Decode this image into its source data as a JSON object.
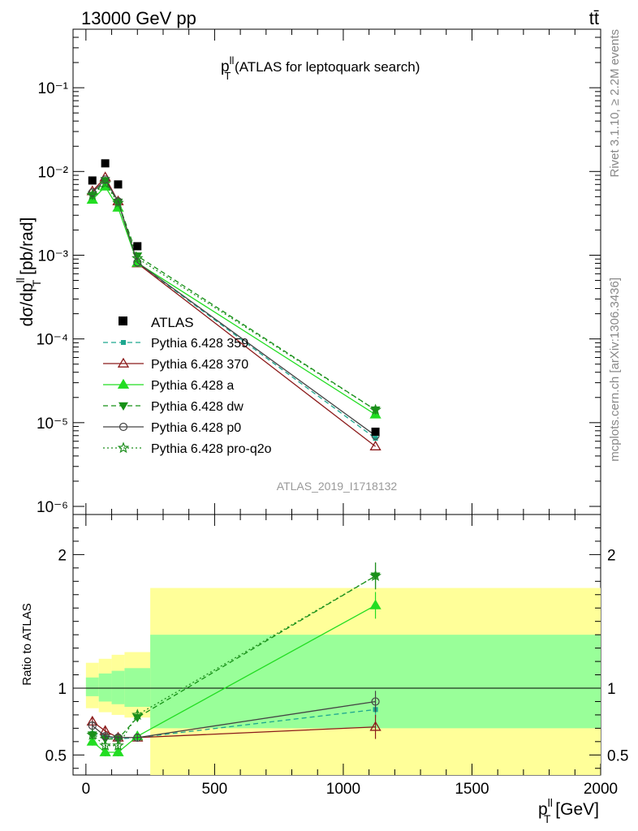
{
  "header": {
    "left": "13000 GeV pp",
    "right": "tt̄"
  },
  "side_labels": {
    "rivet": "Rivet 3.1.10, ≥ 2.2M events",
    "mcplots": "mcplots.cern.ch [arXiv:1306.3436]"
  },
  "plot_title": {
    "main": "p",
    "sup": "ll",
    "sub": "T",
    "rest": " (ATLAS for leptoquark search)"
  },
  "analysis_id": "ATLAS_2019_I1718132",
  "y_label_main": {
    "pre": "dσ/dp",
    "sup": "ll",
    "sub": "T",
    "post": " [pb/rad]"
  },
  "y_label_ratio": "Ratio to ATLAS",
  "x_label": {
    "pre": "p",
    "sup": "ll",
    "sub": "T",
    "post": " [GeV]"
  },
  "colors": {
    "data": "#000000",
    "p359": "#1ea78f",
    "p370": "#8b1a1a",
    "pa": "#22dd22",
    "pdw": "#169116",
    "pp0": "#444444",
    "pq2o": "#1f8f1f",
    "band_inner": "#99ff99",
    "band_outer": "#ffff99"
  },
  "chart_data": {
    "type": "line",
    "x_axis": {
      "range": [
        -50,
        2000
      ],
      "ticks": [
        0,
        500,
        1000,
        1500,
        2000
      ],
      "tick_labels": [
        "0",
        "500",
        "1000",
        "1500",
        "2000"
      ]
    },
    "main_panel": {
      "y_scale": "log",
      "y_range": [
        8e-07,
        0.5
      ],
      "y_ticks": [
        1e-06,
        1e-05,
        0.0001,
        0.001,
        0.01,
        0.1
      ],
      "y_tick_labels": [
        "10⁻⁶",
        "10⁻⁵",
        "10⁻⁴",
        "10⁻³",
        "10⁻²",
        "10⁻¹"
      ]
    },
    "ratio_panel": {
      "y_range": [
        0.35,
        2.3
      ],
      "y_ticks": [
        0.5,
        1,
        2
      ],
      "y_tick_labels": [
        "0.5",
        "1",
        "2"
      ],
      "reference": 1
    },
    "x": [
      25,
      75,
      125,
      200,
      1125
    ],
    "data": {
      "name": "ATLAS",
      "values": [
        0.0078,
        0.0125,
        0.007,
        0.00128,
        7.8e-06
      ]
    },
    "series": [
      {
        "key": "p359",
        "name": "Pythia 6.428 359",
        "values": [
          0.0052,
          0.0078,
          0.0043,
          0.00081,
          6.5e-06
        ],
        "ratio": [
          0.66,
          0.64,
          0.62,
          0.63,
          0.84
        ],
        "ratio_err": [
          0.03,
          0.03,
          0.03,
          0.03,
          0.06
        ]
      },
      {
        "key": "p370",
        "name": "Pythia 6.428 370",
        "values": [
          0.0058,
          0.0085,
          0.0044,
          0.0008,
          5.2e-06
        ],
        "ratio": [
          0.75,
          0.68,
          0.63,
          0.63,
          0.71
        ],
        "ratio_err": [
          0.03,
          0.03,
          0.03,
          0.03,
          0.09
        ]
      },
      {
        "key": "pa",
        "name": "Pythia 6.428 a",
        "values": [
          0.0046,
          0.0066,
          0.0037,
          0.00081,
          1.25e-05
        ],
        "ratio": [
          0.6,
          0.52,
          0.52,
          0.64,
          1.62
        ],
        "ratio_err": [
          0.03,
          0.03,
          0.03,
          0.03,
          0.1
        ]
      },
      {
        "key": "pdw",
        "name": "Pythia 6.428 dw",
        "values": [
          0.0052,
          0.0078,
          0.0043,
          0.00098,
          1.42e-05
        ],
        "ratio": [
          0.65,
          0.62,
          0.62,
          0.78,
          1.84
        ],
        "ratio_err": [
          0.03,
          0.03,
          0.03,
          0.03,
          0.1
        ]
      },
      {
        "key": "pp0",
        "name": "Pythia 6.428 p0",
        "values": [
          0.0056,
          0.008,
          0.0044,
          0.00082,
          7e-06
        ],
        "ratio": [
          0.72,
          0.64,
          0.63,
          0.63,
          0.9
        ],
        "ratio_err": [
          0.03,
          0.03,
          0.03,
          0.03,
          0.08
        ]
      },
      {
        "key": "pq2o",
        "name": "Pythia 6.428 pro-q2o",
        "values": [
          0.0052,
          0.0072,
          0.0042,
          0.00092,
          1.42e-05
        ],
        "ratio": [
          0.65,
          0.57,
          0.57,
          0.8,
          1.84
        ],
        "ratio_err": [
          0.03,
          0.03,
          0.03,
          0.03,
          0.1
        ]
      }
    ],
    "uncertainty_band": {
      "bins": [
        [
          0,
          50
        ],
        [
          50,
          100
        ],
        [
          100,
          150
        ],
        [
          150,
          250
        ],
        [
          250,
          2000
        ]
      ],
      "inner": [
        [
          0.94,
          1.08
        ],
        [
          0.9,
          1.11
        ],
        [
          0.88,
          1.13
        ],
        [
          0.86,
          1.15
        ],
        [
          0.7,
          1.4
        ]
      ],
      "outer": [
        [
          0.85,
          1.19
        ],
        [
          0.82,
          1.22
        ],
        [
          0.8,
          1.25
        ],
        [
          0.78,
          1.27
        ],
        [
          0.35,
          1.75
        ]
      ]
    }
  }
}
